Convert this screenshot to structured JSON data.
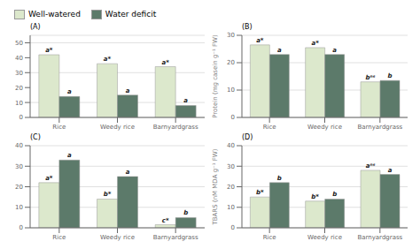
{
  "chart_data": [
    {
      "type": "bar",
      "title": "(A)",
      "categories": [
        "Rice",
        "Weedy rice",
        "Barnyardgrass"
      ],
      "series": [
        {
          "name": "Well-watered",
          "color": "#dce8cc",
          "values": [
            42,
            36,
            34
          ],
          "annotations": [
            "a*",
            "a*",
            "a*"
          ]
        },
        {
          "name": "Water deficit",
          "color": "#5c7a6a",
          "values": [
            14,
            15,
            8
          ],
          "annotations": [
            "a",
            "a",
            "a"
          ]
        }
      ],
      "ylim": [
        0,
        55
      ],
      "yticks": [
        0,
        10,
        20,
        30,
        40,
        50
      ],
      "grid": true
    },
    {
      "type": "bar",
      "title": "(B)",
      "categories": [
        "Rice",
        "Weedy rice",
        "Barnyardgrass"
      ],
      "series": [
        {
          "name": "Well-watered",
          "color": "#dce8cc",
          "values": [
            26.5,
            25.5,
            13
          ],
          "annotations": [
            "a*",
            "a*",
            "bⁿˢ"
          ]
        },
        {
          "name": "Water deficit",
          "color": "#5c7a6a",
          "values": [
            23,
            23,
            13.5
          ],
          "annotations": [
            "a",
            "a",
            "b"
          ]
        }
      ],
      "ylabel": "Protein (mg casein g⁻¹ FW)",
      "ylim": [
        0,
        30
      ],
      "yticks": [
        0,
        10,
        20,
        30
      ],
      "grid": true
    },
    {
      "type": "bar",
      "title": "(C)",
      "categories": [
        "Rice",
        "Weedy rice",
        "Barnyardgrass"
      ],
      "series": [
        {
          "name": "Well-watered",
          "color": "#dce8cc",
          "values": [
            22,
            14,
            1.5
          ],
          "annotations": [
            "a*",
            "b*",
            "c*"
          ]
        },
        {
          "name": "Water deficit",
          "color": "#5c7a6a",
          "values": [
            33,
            25,
            5
          ],
          "annotations": [
            "a",
            "a",
            "b"
          ]
        }
      ],
      "ylim": [
        0,
        40
      ],
      "yticks": [
        0,
        10,
        20,
        30,
        40
      ],
      "grid": true
    },
    {
      "type": "bar",
      "title": "(D)",
      "categories": [
        "Rice",
        "Weedy rice",
        "Barnyardgrass"
      ],
      "series": [
        {
          "name": "Well-watered",
          "color": "#dce8cc",
          "values": [
            15,
            13,
            28
          ],
          "annotations": [
            "b*",
            "b*",
            "aⁿˢ"
          ]
        },
        {
          "name": "Water deficit",
          "color": "#5c7a6a",
          "values": [
            22,
            14,
            26
          ],
          "annotations": [
            "b",
            "b",
            "a"
          ]
        }
      ],
      "ylabel": "TBARS (nM MDA g⁻¹ FW)",
      "ylim": [
        0,
        40
      ],
      "yticks": [
        0,
        10,
        20,
        30,
        40
      ],
      "grid": true
    }
  ]
}
